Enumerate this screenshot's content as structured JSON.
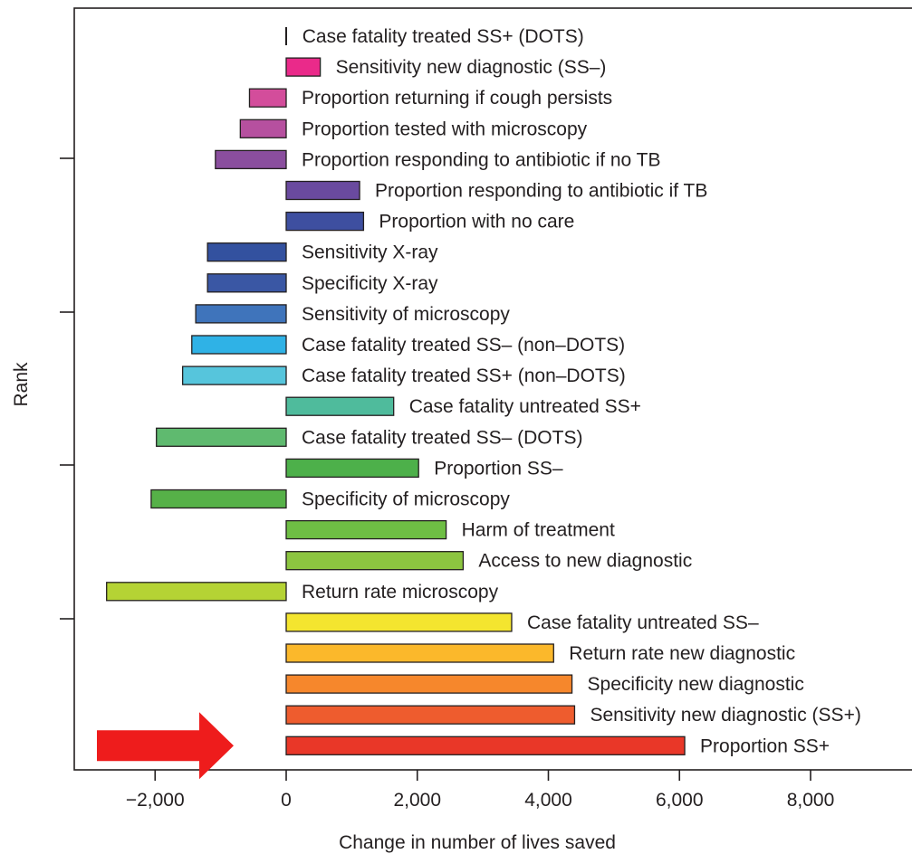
{
  "chart_data": {
    "type": "bar",
    "orientation": "horizontal",
    "xlabel": "Change in number of lives saved",
    "ylabel": "Rank",
    "xlim": [
      -3200,
      9600
    ],
    "xticks": [
      -2000,
      0,
      2000,
      4000,
      6000,
      8000
    ],
    "xtick_labels": [
      "−2,000",
      "0",
      "2,000",
      "4,000",
      "6,000",
      "8,000"
    ],
    "grid": false,
    "legend": "none",
    "highlight_arrow_on": "Proportion SS+",
    "categories": [
      "Case fatality treated SS+ (DOTS)",
      "Sensitivity new diagnostic (SS–)",
      "Proportion returning if cough persists",
      "Proportion tested with microscopy",
      "Proportion responding to antibiotic if no TB",
      "Proportion responding to antibiotic if TB",
      "Proportion with no care",
      "Sensitivity X-ray",
      "Specificity X-ray",
      "Sensitivity of microscopy",
      "Case fatality treated SS–  (non–DOTS)",
      "Case fatality treated SS+ (non–DOTS)",
      "Case fatality untreated SS+",
      "Case fatality treated SS– (DOTS)",
      "Proportion SS–",
      "Specificity of microscopy",
      "Harm of treatment",
      "Access to new diagnostic",
      "Return rate microscopy",
      "Case fatality untreated SS–",
      "Return rate new diagnostic",
      "Specificity new diagnostic",
      "Sensitivity new diagnostic (SS+)",
      "Proportion SS+"
    ],
    "values": [
      10,
      520,
      -560,
      -700,
      -1080,
      1120,
      1180,
      -1200,
      -1200,
      -1380,
      -1440,
      -1580,
      1640,
      -1980,
      2020,
      -2060,
      2440,
      2700,
      -2740,
      3440,
      4080,
      4360,
      4400,
      6080
    ],
    "colors": [
      "#231f20",
      "#ea2a8a",
      "#d34d9b",
      "#b6509f",
      "#8a4e9e",
      "#6a4a9f",
      "#3e4fa0",
      "#33519f",
      "#3a57a4",
      "#3f74bb",
      "#2fb2e6",
      "#56c5dc",
      "#4fbb9c",
      "#5fba6f",
      "#4db04a",
      "#56b148",
      "#6ebe44",
      "#8cc540",
      "#b5d334",
      "#f4e52f",
      "#fbb82b",
      "#f6872c",
      "#ee5c2e",
      "#e93728"
    ],
    "arrow_color": "#ee1c1c"
  }
}
